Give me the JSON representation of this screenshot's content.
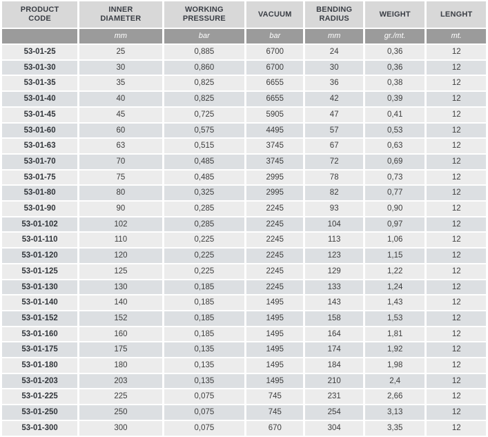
{
  "table": {
    "columns": [
      {
        "key": "product-code",
        "line1": "PRODUCT",
        "line2": "CODE",
        "unit": ""
      },
      {
        "key": "inner-diameter",
        "line1": "INNER",
        "line2": "DIAMETER",
        "unit": "mm"
      },
      {
        "key": "working-pressure",
        "line1": "WORKING",
        "line2": "PRESSURE",
        "unit": "bar"
      },
      {
        "key": "vacuum",
        "line1": "VACUUM",
        "line2": "",
        "unit": "bar"
      },
      {
        "key": "bending-radius",
        "line1": "BENDING",
        "line2": "RADIUS",
        "unit": "mm"
      },
      {
        "key": "weight",
        "line1": "WEIGHT",
        "line2": "",
        "unit": "gr./mt."
      },
      {
        "key": "lenght",
        "line1": "LENGHT",
        "line2": "",
        "unit": "mt."
      }
    ],
    "rows": [
      [
        "53-01-25",
        "25",
        "0,885",
        "6700",
        "24",
        "0,36",
        "12"
      ],
      [
        "53-01-30",
        "30",
        "0,860",
        "6700",
        "30",
        "0,36",
        "12"
      ],
      [
        "53-01-35",
        "35",
        "0,825",
        "6655",
        "36",
        "0,38",
        "12"
      ],
      [
        "53-01-40",
        "40",
        "0,825",
        "6655",
        "42",
        "0,39",
        "12"
      ],
      [
        "53-01-45",
        "45",
        "0,725",
        "5905",
        "47",
        "0,41",
        "12"
      ],
      [
        "53-01-60",
        "60",
        "0,575",
        "4495",
        "57",
        "0,53",
        "12"
      ],
      [
        "53-01-63",
        "63",
        "0,515",
        "3745",
        "67",
        "0,63",
        "12"
      ],
      [
        "53-01-70",
        "70",
        "0,485",
        "3745",
        "72",
        "0,69",
        "12"
      ],
      [
        "53-01-75",
        "75",
        "0,485",
        "2995",
        "78",
        "0,73",
        "12"
      ],
      [
        "53-01-80",
        "80",
        "0,325",
        "2995",
        "82",
        "0,77",
        "12"
      ],
      [
        "53-01-90",
        "90",
        "0,285",
        "2245",
        "93",
        "0,90",
        "12"
      ],
      [
        "53-01-102",
        "102",
        "0,285",
        "2245",
        "104",
        "0,97",
        "12"
      ],
      [
        "53-01-110",
        "110",
        "0,225",
        "2245",
        "113",
        "1,06",
        "12"
      ],
      [
        "53-01-120",
        "120",
        "0,225",
        "2245",
        "123",
        "1,15",
        "12"
      ],
      [
        "53-01-125",
        "125",
        "0,225",
        "2245",
        "129",
        "1,22",
        "12"
      ],
      [
        "53-01-130",
        "130",
        "0,185",
        "2245",
        "133",
        "1,24",
        "12"
      ],
      [
        "53-01-140",
        "140",
        "0,185",
        "1495",
        "143",
        "1,43",
        "12"
      ],
      [
        "53-01-152",
        "152",
        "0,185",
        "1495",
        "158",
        "1,53",
        "12"
      ],
      [
        "53-01-160",
        "160",
        "0,185",
        "1495",
        "164",
        "1,81",
        "12"
      ],
      [
        "53-01-175",
        "175",
        "0,135",
        "1495",
        "174",
        "1,92",
        "12"
      ],
      [
        "53-01-180",
        "180",
        "0,135",
        "1495",
        "184",
        "1,98",
        "12"
      ],
      [
        "53-01-203",
        "203",
        "0,135",
        "1495",
        "210",
        "2,4",
        "12"
      ],
      [
        "53-01-225",
        "225",
        "0,075",
        "745",
        "231",
        "2,66",
        "12"
      ],
      [
        "53-01-250",
        "250",
        "0,075",
        "745",
        "254",
        "3,13",
        "12"
      ],
      [
        "53-01-300",
        "300",
        "0,075",
        "670",
        "304",
        "3,35",
        "12"
      ]
    ]
  },
  "colors": {
    "header_bg": "#d8d8d8",
    "header_text": "#3a3e45",
    "units_bg": "#9b9b9b",
    "units_text": "#ffffff",
    "row_odd_bg": "#ececec",
    "row_even_bg": "#dcdfe2",
    "cell_text": "#3d3d3d",
    "code_text": "#32363b"
  }
}
